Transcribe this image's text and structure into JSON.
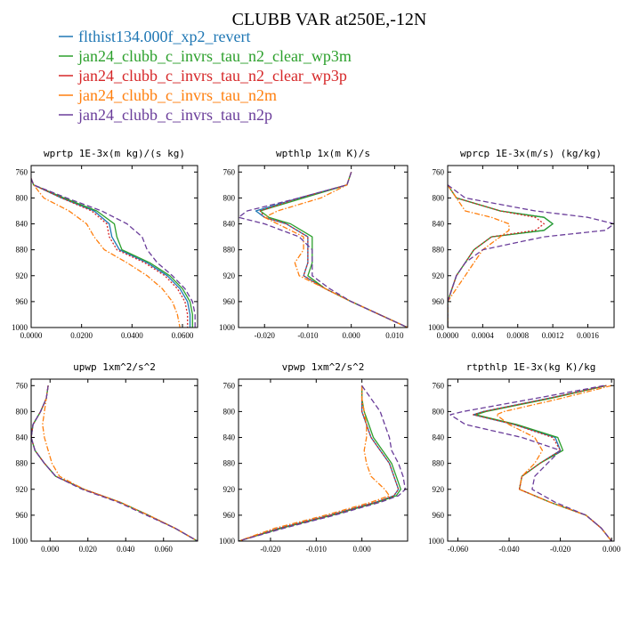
{
  "colors": {
    "flthist134.000f_xp2_revert": "#1f77b4",
    "jan24_clubb_c_invrs_tau_n2_clear_wp3m": "#2ca02c",
    "jan24_clubb_c_invrs_tau_n2_clear_wp3p": "#d62728",
    "jan24_clubb_c_invrs_tau_n2m": "#ff7f0e",
    "jan24_clubb_c_invrs_tau_n2p": "#6a3d9a"
  },
  "chart_data": [
    {
      "type": "line",
      "title": "wprtp  1E-3x(m kg)/(s kg)",
      "xlim": [
        0,
        0.066
      ],
      "xticks": [
        0,
        0.02,
        0.04,
        0.06
      ],
      "xtick_labels": [
        "0.0000",
        "0.0200",
        "0.0400",
        "0.0600"
      ],
      "ylim": [
        1000,
        750
      ],
      "yticks": [
        760,
        800,
        840,
        880,
        920,
        960,
        1000
      ],
      "levels": [
        770,
        780,
        800,
        820,
        840,
        860,
        880,
        900,
        920,
        940,
        960,
        980,
        1000
      ],
      "series": [
        {
          "name": "flthist134.000f_xp2_revert",
          "dash": "solid",
          "values": [
            0,
            0.001,
            0.012,
            0.025,
            0.031,
            0.032,
            0.035,
            0.046,
            0.054,
            0.059,
            0.062,
            0.063,
            0.063
          ]
        },
        {
          "name": "jan24_clubb_c_invrs_tau_n2_clear_wp3m",
          "dash": "solid",
          "values": [
            0,
            0.001,
            0.013,
            0.026,
            0.033,
            0.034,
            0.036,
            0.047,
            0.055,
            0.06,
            0.063,
            0.064,
            0.064
          ]
        },
        {
          "name": "jan24_clubb_c_invrs_tau_n2_clear_wp3p",
          "dash": "dotted",
          "values": [
            0,
            0.001,
            0.012,
            0.024,
            0.03,
            0.031,
            0.034,
            0.045,
            0.053,
            0.058,
            0.061,
            0.062,
            0.062
          ]
        },
        {
          "name": "jan24_clubb_c_invrs_tau_n2m",
          "dash": "dashdot",
          "values": [
            0,
            0.001,
            0.005,
            0.015,
            0.022,
            0.025,
            0.029,
            0.038,
            0.046,
            0.052,
            0.056,
            0.058,
            0.059
          ]
        },
        {
          "name": "jan24_clubb_c_invrs_tau_n2p",
          "dash": "dashed",
          "values": [
            0,
            0.001,
            0.014,
            0.028,
            0.038,
            0.044,
            0.046,
            0.05,
            0.056,
            0.061,
            0.064,
            0.065,
            0.065
          ]
        }
      ]
    },
    {
      "type": "line",
      "title": "wpthlp  1x(m K)/s",
      "xlim": [
        -0.026,
        0.013
      ],
      "xticks": [
        -0.02,
        -0.01,
        0,
        0.01
      ],
      "xtick_labels": [
        "-0.020",
        "-0.010",
        "0.000",
        "0.010"
      ],
      "ylim": [
        1000,
        750
      ],
      "yticks": [
        760,
        800,
        840,
        880,
        920,
        960,
        1000
      ],
      "levels": [
        760,
        780,
        800,
        820,
        830,
        840,
        860,
        880,
        900,
        920,
        940,
        960,
        1000
      ],
      "series": [
        {
          "name": "flthist134.000f_xp2_revert",
          "dash": "solid",
          "values": [
            0,
            -0.001,
            -0.012,
            -0.022,
            -0.02,
            -0.015,
            -0.01,
            -0.01,
            -0.01,
            -0.011,
            -0.006,
            0,
            0.013
          ]
        },
        {
          "name": "jan24_clubb_c_invrs_tau_n2_clear_wp3m",
          "dash": "solid",
          "values": [
            0,
            -0.001,
            -0.011,
            -0.021,
            -0.019,
            -0.014,
            -0.009,
            -0.009,
            -0.009,
            -0.01,
            -0.006,
            0,
            0.013
          ]
        },
        {
          "name": "jan24_clubb_c_invrs_tau_n2_clear_wp3p",
          "dash": "dotted",
          "values": [
            0,
            -0.001,
            -0.012,
            -0.021,
            -0.02,
            -0.015,
            -0.01,
            -0.01,
            -0.01,
            -0.011,
            -0.006,
            0,
            0.013
          ]
        },
        {
          "name": "jan24_clubb_c_invrs_tau_n2m",
          "dash": "dashdot",
          "values": [
            0,
            -0.001,
            -0.007,
            -0.017,
            -0.02,
            -0.017,
            -0.011,
            -0.011,
            -0.013,
            -0.012,
            -0.006,
            0,
            0.013
          ]
        },
        {
          "name": "jan24_clubb_c_invrs_tau_n2p",
          "dash": "dashed",
          "values": [
            0,
            -0.001,
            -0.012,
            -0.024,
            -0.026,
            -0.02,
            -0.012,
            -0.009,
            -0.009,
            -0.009,
            -0.005,
            0,
            0.013
          ]
        }
      ]
    },
    {
      "type": "line",
      "title": "wprcp  1E-3x(m/s) (kg/kg)",
      "xlim": [
        0,
        0.0019
      ],
      "xticks": [
        0,
        0.0004,
        0.0008,
        0.0012,
        0.0016
      ],
      "xtick_labels": [
        "0.0000",
        "0.0004",
        "0.0008",
        "0.0012",
        "0.0016"
      ],
      "ylim": [
        1000,
        750
      ],
      "yticks": [
        760,
        800,
        840,
        880,
        920,
        960,
        1000
      ],
      "levels": [
        780,
        800,
        820,
        830,
        840,
        850,
        860,
        880,
        900,
        920,
        940,
        960,
        1000
      ],
      "series": [
        {
          "name": "flthist134.000f_xp2_revert",
          "dash": "solid",
          "values": [
            0,
            0.0001,
            0.0006,
            0.0011,
            0.0012,
            0.0011,
            0.0005,
            0.0003,
            0.0002,
            0.0001,
            5e-05,
            0,
            0
          ]
        },
        {
          "name": "jan24_clubb_c_invrs_tau_n2_clear_wp3m",
          "dash": "solid",
          "values": [
            0,
            0.0001,
            0.0006,
            0.0011,
            0.0012,
            0.0011,
            0.0005,
            0.0003,
            0.0002,
            0.0001,
            5e-05,
            0,
            0
          ]
        },
        {
          "name": "jan24_clubb_c_invrs_tau_n2_clear_wp3p",
          "dash": "dotted",
          "values": [
            0,
            0.0001,
            0.0006,
            0.001,
            0.0011,
            0.001,
            0.0005,
            0.0003,
            0.0002,
            0.0001,
            5e-05,
            0,
            0
          ]
        },
        {
          "name": "jan24_clubb_c_invrs_tau_n2m",
          "dash": "dashdot",
          "values": [
            0,
            0.0001,
            0.0002,
            0.0005,
            0.0007,
            0.0007,
            0.0006,
            0.0004,
            0.0003,
            0.0002,
            0.0001,
            0,
            0
          ]
        },
        {
          "name": "jan24_clubb_c_invrs_tau_n2p",
          "dash": "dashed",
          "values": [
            0,
            0.0002,
            0.001,
            0.0016,
            0.0019,
            0.0018,
            0.0011,
            0.0004,
            0.0002,
            0.0001,
            5e-05,
            0,
            0
          ]
        }
      ]
    },
    {
      "type": "line",
      "title": "upwp  1xm^2/s^2",
      "xlim": [
        -0.01,
        0.078
      ],
      "xticks": [
        0,
        0.02,
        0.04,
        0.06
      ],
      "xtick_labels": [
        "0.000",
        "0.020",
        "0.040",
        "0.060"
      ],
      "ylim": [
        1000,
        750
      ],
      "yticks": [
        760,
        800,
        840,
        880,
        920,
        960,
        1000
      ],
      "levels": [
        760,
        780,
        800,
        820,
        840,
        860,
        880,
        900,
        920,
        940,
        960,
        980,
        1000
      ],
      "series": [
        {
          "name": "flthist134.000f_xp2_revert",
          "dash": "solid",
          "values": [
            -0.001,
            -0.002,
            -0.005,
            -0.009,
            -0.01,
            -0.008,
            -0.003,
            0.003,
            0.018,
            0.037,
            0.052,
            0.066,
            0.078
          ]
        },
        {
          "name": "jan24_clubb_c_invrs_tau_n2_clear_wp3m",
          "dash": "solid",
          "values": [
            -0.001,
            -0.002,
            -0.005,
            -0.009,
            -0.01,
            -0.008,
            -0.003,
            0.003,
            0.018,
            0.037,
            0.052,
            0.066,
            0.078
          ]
        },
        {
          "name": "jan24_clubb_c_invrs_tau_n2_clear_wp3p",
          "dash": "dotted",
          "values": [
            -0.001,
            -0.002,
            -0.005,
            -0.009,
            -0.01,
            -0.008,
            -0.003,
            0.003,
            0.018,
            0.037,
            0.052,
            0.066,
            0.078
          ]
        },
        {
          "name": "jan24_clubb_c_invrs_tau_n2m",
          "dash": "dashdot",
          "values": [
            -0.001,
            -0.002,
            -0.003,
            -0.004,
            -0.003,
            -0.001,
            0.001,
            0.005,
            0.018,
            0.037,
            0.052,
            0.066,
            0.078
          ]
        },
        {
          "name": "jan24_clubb_c_invrs_tau_n2p",
          "dash": "dashed",
          "values": [
            -0.001,
            -0.002,
            -0.005,
            -0.009,
            -0.01,
            -0.008,
            -0.003,
            0.003,
            0.017,
            0.036,
            0.051,
            0.066,
            0.078
          ]
        }
      ]
    },
    {
      "type": "line",
      "title": "vpwp  1xm^2/s^2",
      "xlim": [
        -0.027,
        0.01
      ],
      "xticks": [
        -0.02,
        -0.01,
        0
      ],
      "xtick_labels": [
        "-0.020",
        "-0.010",
        "0.000"
      ],
      "ylim": [
        1000,
        750
      ],
      "yticks": [
        760,
        800,
        840,
        880,
        920,
        960,
        1000
      ],
      "levels": [
        760,
        780,
        800,
        820,
        840,
        860,
        880,
        900,
        920,
        930,
        940,
        960,
        980,
        1000
      ],
      "series": [
        {
          "name": "flthist134.000f_xp2_revert",
          "dash": "solid",
          "values": [
            0,
            0,
            0,
            0.001,
            0.002,
            0.004,
            0.006,
            0.007,
            0.008,
            0.007,
            0.003,
            -0.007,
            -0.018,
            -0.027
          ]
        },
        {
          "name": "jan24_clubb_c_invrs_tau_n2_clear_wp3m",
          "dash": "solid",
          "values": [
            0,
            0,
            0.0005,
            0.0015,
            0.0025,
            0.0045,
            0.0065,
            0.0075,
            0.0085,
            0.0075,
            0.0035,
            -0.0065,
            -0.0175,
            -0.027
          ]
        },
        {
          "name": "jan24_clubb_c_invrs_tau_n2_clear_wp3p",
          "dash": "dotted",
          "values": [
            0,
            0,
            0,
            0.001,
            0.002,
            0.004,
            0.006,
            0.007,
            0.008,
            0.007,
            0.003,
            -0.007,
            -0.018,
            -0.027
          ]
        },
        {
          "name": "jan24_clubb_c_invrs_tau_n2m",
          "dash": "dashdot",
          "values": [
            0,
            0,
            0.0005,
            0.001,
            0.001,
            0.0005,
            0.001,
            0.002,
            0.005,
            0.006,
            0.002,
            -0.008,
            -0.019,
            -0.027
          ]
        },
        {
          "name": "jan24_clubb_c_invrs_tau_n2p",
          "dash": "dashed",
          "values": [
            0,
            0.002,
            0.004,
            0.005,
            0.006,
            0.0065,
            0.008,
            0.009,
            0.0095,
            0.008,
            0.004,
            -0.006,
            -0.017,
            -0.027
          ]
        }
      ]
    },
    {
      "type": "line",
      "title": "rtpthlp  1E-3x(kg K)/kg",
      "xlim": [
        -0.064,
        0.001
      ],
      "xticks": [
        -0.06,
        -0.04,
        -0.02,
        0
      ],
      "xtick_labels": [
        "-0.060",
        "-0.040",
        "-0.020",
        "0.000"
      ],
      "ylim": [
        1000,
        750
      ],
      "yticks": [
        760,
        800,
        840,
        880,
        920,
        960,
        1000
      ],
      "levels": [
        760,
        780,
        800,
        805,
        820,
        840,
        860,
        880,
        900,
        920,
        940,
        960,
        980,
        1000
      ],
      "series": [
        {
          "name": "flthist134.000f_xp2_revert",
          "dash": "solid",
          "values": [
            -0.002,
            -0.025,
            -0.05,
            -0.054,
            -0.038,
            -0.022,
            -0.02,
            -0.028,
            -0.035,
            -0.036,
            -0.024,
            -0.01,
            -0.004,
            0
          ]
        },
        {
          "name": "jan24_clubb_c_invrs_tau_n2_clear_wp3m",
          "dash": "solid",
          "values": [
            -0.002,
            -0.024,
            -0.049,
            -0.053,
            -0.037,
            -0.021,
            -0.019,
            -0.028,
            -0.035,
            -0.036,
            -0.024,
            -0.01,
            -0.004,
            0
          ]
        },
        {
          "name": "jan24_clubb_c_invrs_tau_n2_clear_wp3p",
          "dash": "dotted",
          "values": [
            -0.002,
            -0.025,
            -0.05,
            -0.054,
            -0.038,
            -0.023,
            -0.02,
            -0.028,
            -0.035,
            -0.036,
            -0.024,
            -0.01,
            -0.004,
            0
          ]
        },
        {
          "name": "jan24_clubb_c_invrs_tau_n2m",
          "dash": "dashdot",
          "values": [
            0,
            -0.02,
            -0.042,
            -0.045,
            -0.04,
            -0.03,
            -0.027,
            -0.03,
            -0.035,
            -0.036,
            -0.024,
            -0.01,
            -0.004,
            0
          ]
        },
        {
          "name": "jan24_clubb_c_invrs_tau_n2p",
          "dash": "dashed",
          "values": [
            -0.003,
            -0.03,
            -0.058,
            -0.063,
            -0.057,
            -0.035,
            -0.02,
            -0.025,
            -0.03,
            -0.031,
            -0.022,
            -0.01,
            -0.004,
            0
          ]
        }
      ]
    }
  ],
  "figure": {
    "title": "CLUBB VAR at250E,-12N",
    "legend": [
      {
        "name": "flthist134.000f_xp2_revert",
        "color": "#1f77b4"
      },
      {
        "name": "jan24_clubb_c_invrs_tau_n2_clear_wp3m",
        "color": "#2ca02c"
      },
      {
        "name": "jan24_clubb_c_invrs_tau_n2_clear_wp3p",
        "color": "#d62728"
      },
      {
        "name": "jan24_clubb_c_invrs_tau_n2m",
        "color": "#ff7f0e"
      },
      {
        "name": "jan24_clubb_c_invrs_tau_n2p",
        "color": "#6a3d9a"
      }
    ]
  }
}
